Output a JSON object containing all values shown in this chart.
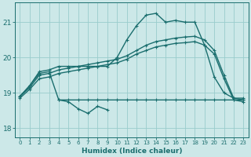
{
  "xlabel": "Humidex (Indice chaleur)",
  "xlim": [
    -0.5,
    23.5
  ],
  "ylim": [
    17.75,
    21.55
  ],
  "yticks": [
    18,
    19,
    20,
    21
  ],
  "xticks": [
    0,
    1,
    2,
    3,
    4,
    5,
    6,
    7,
    8,
    9,
    10,
    11,
    12,
    13,
    14,
    15,
    16,
    17,
    18,
    19,
    20,
    21,
    22,
    23
  ],
  "bg_color": "#cce8e8",
  "grid_color": "#99cccc",
  "line_color": "#1a6e6e",
  "series": [
    {
      "x": [
        0,
        1,
        2,
        3,
        4,
        5,
        6,
        7,
        8,
        9,
        10,
        11,
        12,
        13,
        14,
        15,
        16,
        17,
        18,
        19,
        20,
        21,
        22,
        23
      ],
      "y": [
        18.9,
        19.2,
        19.6,
        19.65,
        19.75,
        19.75,
        19.75,
        19.75,
        19.75,
        19.75,
        20.0,
        20.5,
        20.9,
        21.2,
        21.25,
        21.0,
        21.05,
        21.0,
        21.0,
        20.35,
        19.45,
        19.0,
        18.85,
        18.85
      ]
    },
    {
      "x": [
        0,
        1,
        2,
        3,
        4,
        5,
        6,
        7,
        8,
        9,
        10,
        11,
        12,
        13,
        14,
        15,
        16,
        17,
        18,
        19,
        20,
        21,
        22,
        23
      ],
      "y": [
        18.9,
        19.15,
        19.5,
        19.55,
        19.65,
        19.7,
        19.75,
        19.8,
        19.85,
        19.9,
        19.95,
        20.05,
        20.2,
        20.35,
        20.45,
        20.5,
        20.55,
        20.58,
        20.6,
        20.5,
        20.2,
        19.5,
        18.85,
        18.8
      ]
    },
    {
      "x": [
        0,
        1,
        2,
        3,
        4,
        5,
        6,
        7,
        8,
        9,
        10,
        11,
        12,
        13,
        14,
        15,
        16,
        17,
        18,
        19,
        20,
        21,
        22,
        23
      ],
      "y": [
        18.85,
        19.1,
        19.4,
        19.45,
        19.55,
        19.6,
        19.65,
        19.7,
        19.75,
        19.8,
        19.85,
        19.95,
        20.1,
        20.2,
        20.3,
        20.35,
        20.4,
        20.42,
        20.45,
        20.35,
        20.1,
        19.4,
        18.8,
        18.75
      ]
    },
    {
      "x": [
        0,
        1,
        2,
        3,
        4,
        5,
        6,
        7,
        8,
        9,
        10,
        11,
        12,
        13,
        14,
        15,
        16,
        17,
        18,
        19,
        20,
        21,
        22,
        23
      ],
      "y": [
        18.9,
        19.2,
        19.55,
        19.6,
        18.8,
        18.8,
        18.8,
        18.8,
        18.8,
        18.8,
        18.8,
        18.8,
        18.8,
        18.8,
        18.8,
        18.8,
        18.8,
        18.8,
        18.8,
        18.8,
        18.8,
        18.8,
        18.8,
        18.8
      ]
    },
    {
      "x": [
        4,
        5,
        6,
        7,
        8,
        9
      ],
      "y": [
        18.8,
        18.75,
        18.55,
        18.42,
        18.62,
        18.52
      ]
    }
  ]
}
